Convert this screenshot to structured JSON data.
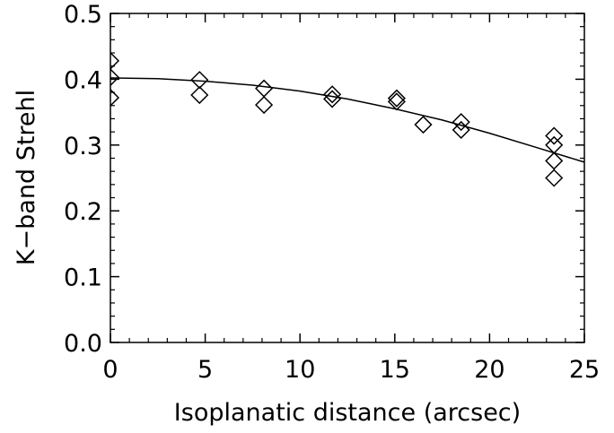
{
  "chart_data": {
    "type": "scatter",
    "xlabel": "Isoplanatic distance (arcsec)",
    "ylabel": "K−band Strehl",
    "xlim": [
      0,
      25
    ],
    "ylim": [
      0.0,
      0.5
    ],
    "x_ticks": [
      0,
      5,
      10,
      15,
      20,
      25
    ],
    "x_tick_labels": [
      "0",
      "5",
      "10",
      "15",
      "20",
      "25"
    ],
    "y_ticks": [
      0.0,
      0.1,
      0.2,
      0.3,
      0.4,
      0.5
    ],
    "y_tick_labels": [
      "0.0",
      "0.1",
      "0.2",
      "0.3",
      "0.4",
      "0.5"
    ],
    "grid": false,
    "colors": {
      "ink": "#000000",
      "background": "#ffffff"
    },
    "series": [
      {
        "marker": "diamond",
        "points": [
          {
            "x": 0.0,
            "y": 0.428
          },
          {
            "x": 0.0,
            "y": 0.403
          },
          {
            "x": 0.0,
            "y": 0.372
          },
          {
            "x": 4.7,
            "y": 0.399
          },
          {
            "x": 4.7,
            "y": 0.376
          },
          {
            "x": 8.1,
            "y": 0.386
          },
          {
            "x": 8.1,
            "y": 0.361
          },
          {
            "x": 11.7,
            "y": 0.377
          },
          {
            "x": 11.7,
            "y": 0.37
          },
          {
            "x": 15.1,
            "y": 0.371
          },
          {
            "x": 15.1,
            "y": 0.366
          },
          {
            "x": 16.5,
            "y": 0.331
          },
          {
            "x": 18.5,
            "y": 0.335
          },
          {
            "x": 18.5,
            "y": 0.323
          },
          {
            "x": 23.4,
            "y": 0.314
          },
          {
            "x": 23.4,
            "y": 0.3
          },
          {
            "x": 23.4,
            "y": 0.276
          },
          {
            "x": 23.4,
            "y": 0.25
          }
        ]
      }
    ],
    "fit_curve": {
      "style": "line",
      "points": [
        {
          "x": 0,
          "y": 0.402
        },
        {
          "x": 2.5,
          "y": 0.401
        },
        {
          "x": 5,
          "y": 0.397
        },
        {
          "x": 7.5,
          "y": 0.391
        },
        {
          "x": 10,
          "y": 0.382
        },
        {
          "x": 12.5,
          "y": 0.37
        },
        {
          "x": 15,
          "y": 0.355
        },
        {
          "x": 17.5,
          "y": 0.338
        },
        {
          "x": 20,
          "y": 0.318
        },
        {
          "x": 22.5,
          "y": 0.296
        },
        {
          "x": 25,
          "y": 0.274
        }
      ]
    }
  }
}
